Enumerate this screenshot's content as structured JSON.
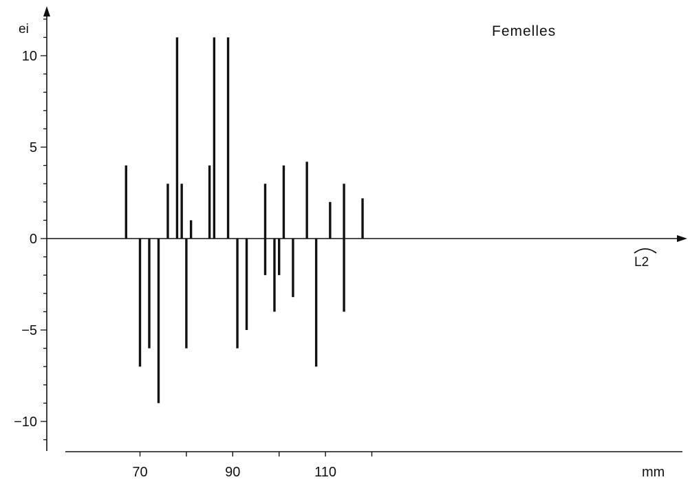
{
  "chart_data": {
    "type": "bar",
    "title": "Femelles",
    "ylabel": "ei",
    "xlabel": "L2",
    "xunit": "mm",
    "ylim": [
      -11.5,
      12.5
    ],
    "xlim": [
      62,
      127
    ],
    "yticks": [
      {
        "value": 10,
        "label": "10"
      },
      {
        "value": 5,
        "label": "5"
      },
      {
        "value": 0,
        "label": "0"
      },
      {
        "value": -5,
        "label": "−5"
      },
      {
        "value": -10,
        "label": "−10"
      }
    ],
    "xticks": [
      {
        "value": 70,
        "label": "70"
      },
      {
        "value": 90,
        "label": "90"
      },
      {
        "value": 110,
        "label": "110"
      }
    ],
    "x": [
      67,
      70,
      72,
      74,
      76,
      78,
      79,
      80,
      81,
      85,
      86,
      89,
      91,
      93,
      97,
      97,
      99,
      100,
      101,
      103,
      106,
      108,
      111,
      114,
      114,
      118
    ],
    "values": [
      4,
      -7,
      -6,
      -9,
      3,
      11,
      3,
      -6,
      1,
      4,
      11,
      11,
      -6,
      -5,
      3,
      -2,
      -4,
      -2,
      4,
      -3.2,
      4.2,
      -7,
      2,
      3,
      -4,
      2.2
    ],
    "grid": false,
    "legend": "none"
  }
}
